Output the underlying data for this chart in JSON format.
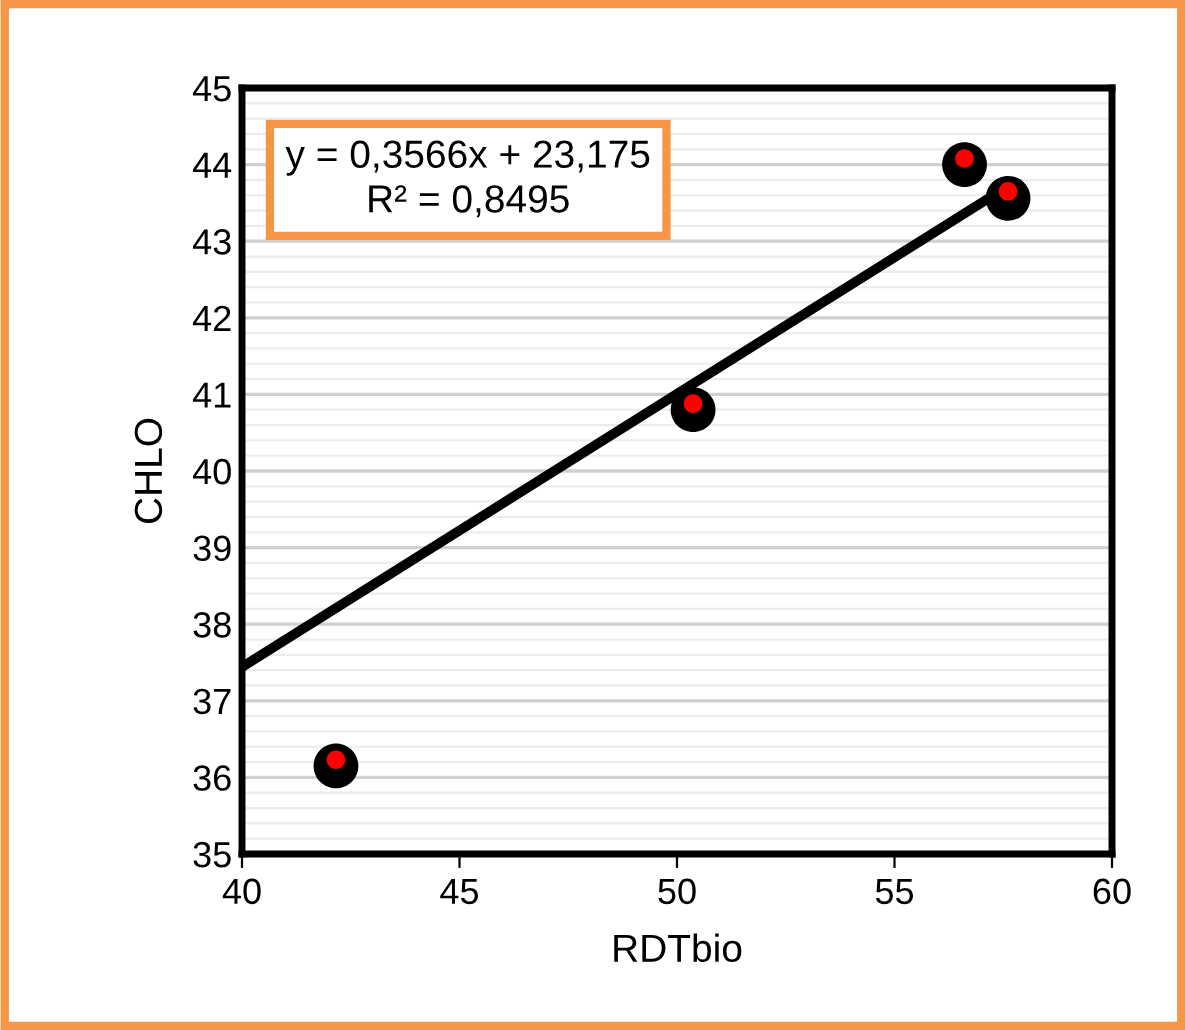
{
  "chart_data": {
    "type": "scatter",
    "xlabel": "RDTbio",
    "ylabel": "CHLO",
    "series": [
      {
        "color": "#000000",
        "marker": "circle",
        "x": [
          42.16,
          50.37,
          56.61,
          57.61
        ],
        "values": [
          36.15,
          40.8,
          44.0,
          43.56
        ]
      },
      {
        "color": "#ff0000",
        "marker": "circle",
        "x": [
          42.16,
          50.37,
          56.61,
          57.61
        ],
        "values": [
          36.23,
          40.88,
          44.08,
          43.65
        ]
      },
      {
        "type": "line",
        "color": "#000000",
        "line_style": "solid",
        "x": [
          40,
          57.61
        ],
        "values": [
          37.44,
          43.72
        ]
      }
    ],
    "annotations": [
      {
        "text": "y = 0,3566x + 23,175\nR² = 0,8495"
      }
    ],
    "xlim": [
      40,
      60
    ],
    "xticks": [
      40,
      45,
      50,
      55,
      60
    ],
    "ylim": [
      35,
      45
    ],
    "yticks": [
      35,
      36,
      37,
      38,
      39,
      40,
      41,
      42,
      43,
      44,
      45
    ],
    "grid": "y",
    "legend": false
  }
}
